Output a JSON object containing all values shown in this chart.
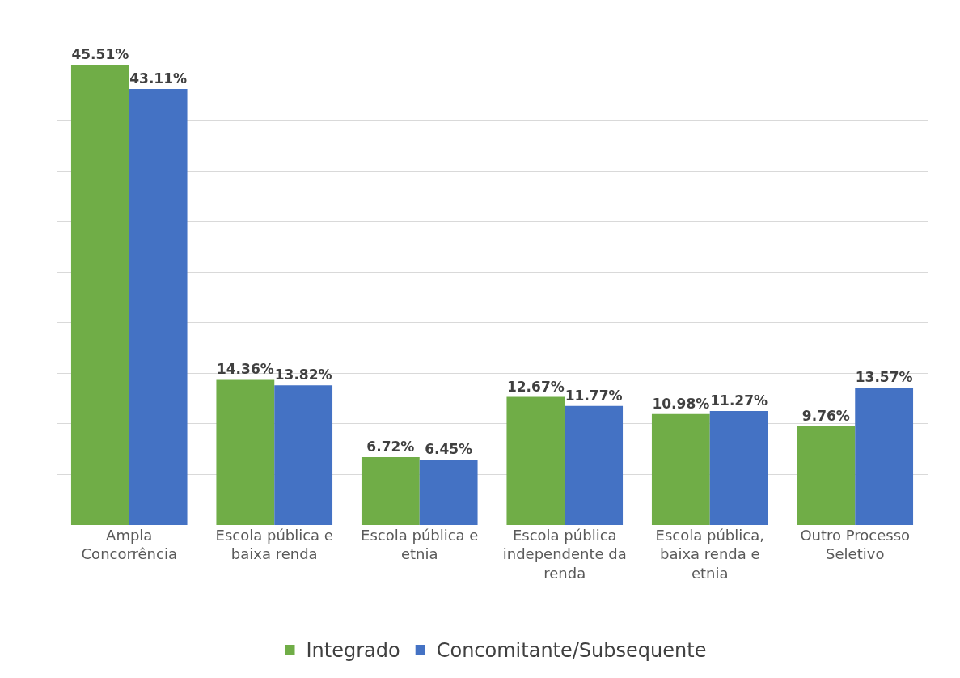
{
  "chart_data": {
    "type": "bar",
    "categories": [
      "Ampla Concorrência",
      "Escola pública e baixa renda",
      "Escola pública e etnia",
      "Escola pública independente da renda",
      "Escola pública, baixa renda e etnia",
      "Outro Processo Seletivo"
    ],
    "series": [
      {
        "name": "Integrado",
        "color": "#70ad47",
        "values": [
          45.51,
          14.36,
          6.72,
          12.67,
          10.98,
          9.76
        ],
        "value_labels": [
          "45.51%",
          "14.36%",
          "6.72%",
          "12.67%",
          "10.98%",
          "9.76%"
        ]
      },
      {
        "name": "Concomitante/Subsequente",
        "color": "#4472c4",
        "values": [
          43.11,
          13.82,
          6.45,
          11.77,
          11.27,
          13.57
        ],
        "value_labels": [
          "43.11%",
          "13.82%",
          "6.45%",
          "11.77%",
          "11.27%",
          "13.57%"
        ]
      }
    ],
    "grid": "y",
    "legend": "bottom",
    "tick_labels": "x"
  }
}
